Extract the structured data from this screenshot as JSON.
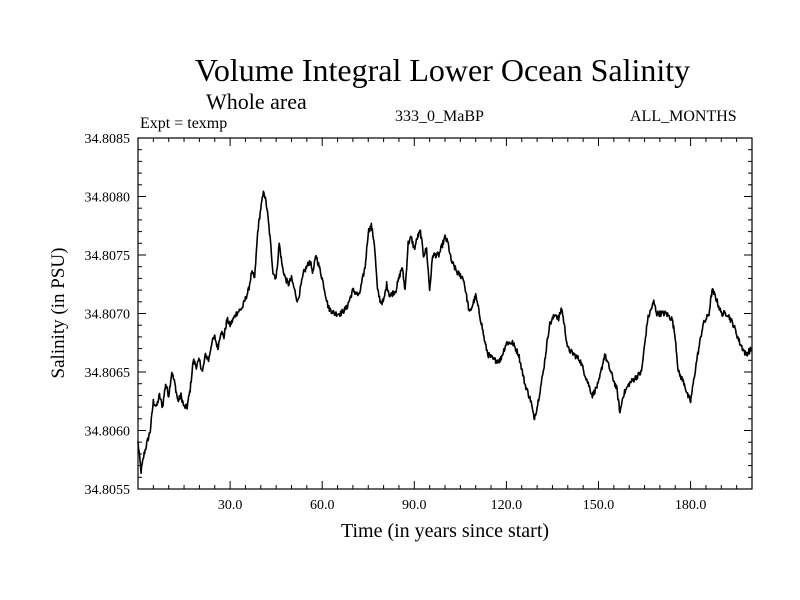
{
  "chart_data": {
    "type": "line",
    "title": "Volume Integral Lower Ocean Salinity",
    "subtitle": "Whole area",
    "annotations": {
      "experiment": "Expt = texmp",
      "run": "333_0_MaBP",
      "months": "ALL_MONTHS"
    },
    "xlabel": "Time (in years since start)",
    "ylabel": "Salinity (in PSU)",
    "xlim": [
      0,
      200
    ],
    "ylim": [
      34.8055,
      34.8085
    ],
    "x_ticks": [
      30,
      60,
      90,
      120,
      150,
      180
    ],
    "x_tick_labels": [
      "30.0",
      "60.0",
      "90.0",
      "120.0",
      "150.0",
      "180.0"
    ],
    "y_ticks": [
      34.8055,
      34.806,
      34.8065,
      34.807,
      34.8075,
      34.808,
      34.8085
    ],
    "y_tick_labels": [
      "34.8055",
      "34.8060",
      "34.8065",
      "34.8070",
      "34.8075",
      "34.8080",
      "34.8085"
    ],
    "grid": false,
    "series": [
      {
        "name": "salinity",
        "x": [
          0,
          1,
          2,
          4,
          5,
          6,
          7,
          8,
          9,
          10,
          11,
          12,
          13,
          14,
          15,
          16,
          17,
          18,
          19,
          20,
          21,
          22,
          23,
          24,
          25,
          26,
          27,
          28,
          29,
          30,
          32,
          34,
          36,
          37,
          38,
          39,
          40,
          41,
          42,
          43,
          44,
          45,
          46,
          47,
          48,
          49,
          50,
          52,
          54,
          56,
          57,
          58,
          59,
          60,
          62,
          64,
          66,
          68,
          70,
          72,
          74,
          75,
          76,
          77,
          78,
          79,
          80,
          81,
          82,
          84,
          86,
          87,
          88,
          89,
          90,
          91,
          92,
          93,
          94,
          95,
          96,
          98,
          100,
          101,
          102,
          104,
          106,
          108,
          110,
          112,
          113,
          114,
          116,
          118,
          120,
          122,
          124,
          126,
          128,
          129,
          130,
          132,
          134,
          136,
          137,
          138,
          140,
          142,
          144,
          146,
          148,
          150,
          152,
          154,
          156,
          157,
          158,
          160,
          162,
          164,
          166,
          168,
          169,
          170,
          172,
          174,
          175,
          176,
          178,
          179,
          180,
          182,
          184,
          186,
          187,
          188,
          190,
          192,
          194,
          196,
          198,
          200
        ],
        "values": [
          34.8059,
          34.80565,
          34.8058,
          34.806,
          34.80625,
          34.8062,
          34.8063,
          34.8062,
          34.8064,
          34.8063,
          34.8065,
          34.8064,
          34.80625,
          34.8063,
          34.8062,
          34.8062,
          34.80635,
          34.8066,
          34.80655,
          34.8066,
          34.8065,
          34.80665,
          34.8066,
          34.80675,
          34.8068,
          34.8067,
          34.80685,
          34.8068,
          34.80695,
          34.8069,
          34.807,
          34.80705,
          34.8072,
          34.80735,
          34.8073,
          34.8077,
          34.8079,
          34.80805,
          34.8079,
          34.80765,
          34.80735,
          34.8073,
          34.8076,
          34.8074,
          34.8073,
          34.80725,
          34.8073,
          34.8071,
          34.80735,
          34.80745,
          34.80735,
          34.8075,
          34.8074,
          34.8073,
          34.80705,
          34.807,
          34.807,
          34.80705,
          34.8072,
          34.80715,
          34.8074,
          34.8077,
          34.80775,
          34.8076,
          34.8072,
          34.8071,
          34.8071,
          34.80725,
          34.80715,
          34.8072,
          34.8074,
          34.8072,
          34.8076,
          34.80765,
          34.80755,
          34.80765,
          34.8077,
          34.8075,
          34.80755,
          34.8072,
          34.8075,
          34.8075,
          34.80765,
          34.8076,
          34.80745,
          34.80735,
          34.8073,
          34.807,
          34.80715,
          34.8069,
          34.80675,
          34.80665,
          34.8066,
          34.8066,
          34.80675,
          34.80675,
          34.80665,
          34.8064,
          34.80625,
          34.8061,
          34.8062,
          34.8065,
          34.8069,
          34.807,
          34.80695,
          34.80705,
          34.8067,
          34.80665,
          34.8066,
          34.80645,
          34.8063,
          34.8064,
          34.80665,
          34.8065,
          34.80635,
          34.80615,
          34.8063,
          34.8064,
          34.80645,
          34.8065,
          34.80695,
          34.8071,
          34.807,
          34.807,
          34.807,
          34.80695,
          34.8068,
          34.8065,
          34.8064,
          34.8063,
          34.80625,
          34.8066,
          34.8069,
          34.807,
          34.8072,
          34.80715,
          34.807,
          34.807,
          34.8069,
          34.80675,
          34.80665,
          34.8067
        ]
      }
    ]
  }
}
